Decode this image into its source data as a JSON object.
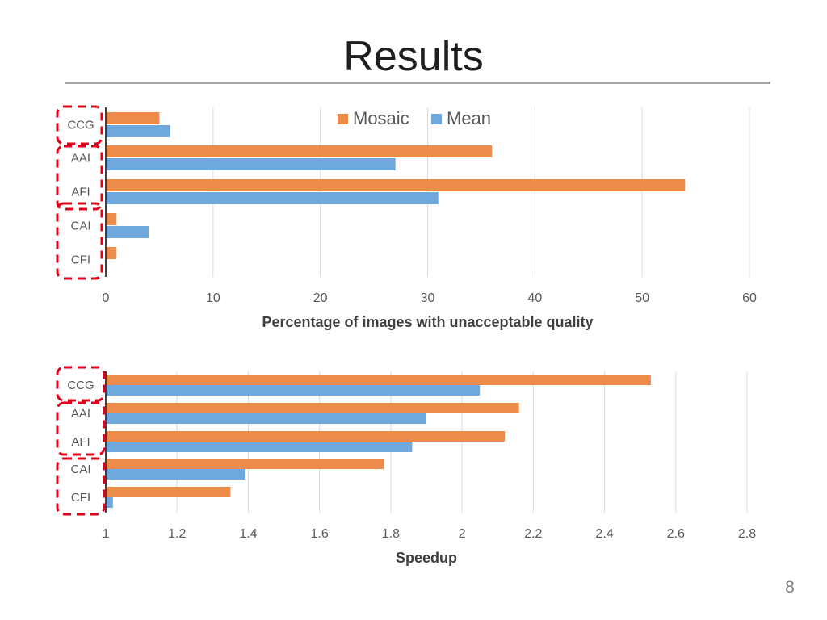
{
  "slide": {
    "title": "Results",
    "page_number": "8"
  },
  "colors": {
    "mosaic": "#ed8b4a",
    "mean": "#6fa8dc",
    "highlight": "#e0001a",
    "grid": "#d9d9d9",
    "axis": "#404040"
  },
  "chart_data": [
    {
      "type": "bar",
      "orientation": "horizontal",
      "categories": [
        "CCG",
        "AAI",
        "AFI",
        "CAI",
        "CFI"
      ],
      "series": [
        {
          "name": "Mosaic",
          "values": [
            5,
            36,
            54,
            1,
            1
          ]
        },
        {
          "name": "Mean",
          "values": [
            6,
            27,
            31,
            4,
            0
          ]
        }
      ],
      "xlabel": "Percentage of images with unacceptable quality",
      "ylabel": "",
      "xlim": [
        0,
        60
      ],
      "xticks": [
        0,
        10,
        20,
        30,
        40,
        50,
        60
      ],
      "tick_labels": [
        "0",
        "10",
        "20",
        "30",
        "40",
        "50",
        "60"
      ],
      "grid": true,
      "legend": "top-center",
      "highlight_groups": [
        [
          "CCG"
        ],
        [
          "AAI",
          "AFI"
        ],
        [
          "CAI",
          "CFI"
        ]
      ]
    },
    {
      "type": "bar",
      "orientation": "horizontal",
      "categories": [
        "CCG",
        "AAI",
        "AFI",
        "CAI",
        "CFI"
      ],
      "series": [
        {
          "name": "Mosaic",
          "values": [
            2.53,
            2.16,
            2.12,
            1.78,
            1.35
          ]
        },
        {
          "name": "Mean",
          "values": [
            2.05,
            1.9,
            1.86,
            1.39,
            1.02
          ]
        }
      ],
      "xlabel": "Speedup",
      "ylabel": "",
      "xlim": [
        1,
        2.8
      ],
      "xticks": [
        1,
        1.2,
        1.4,
        1.6,
        1.8,
        2,
        2.2,
        2.4,
        2.6,
        2.8
      ],
      "tick_labels": [
        "1",
        "1.2",
        "1.4",
        "1.6",
        "1.8",
        "2",
        "2.2",
        "2.4",
        "2.6",
        "2.8"
      ],
      "grid": true,
      "legend": "none",
      "highlight_groups": [
        [
          "CCG"
        ],
        [
          "AAI",
          "AFI"
        ],
        [
          "CAI",
          "CFI"
        ]
      ]
    }
  ]
}
